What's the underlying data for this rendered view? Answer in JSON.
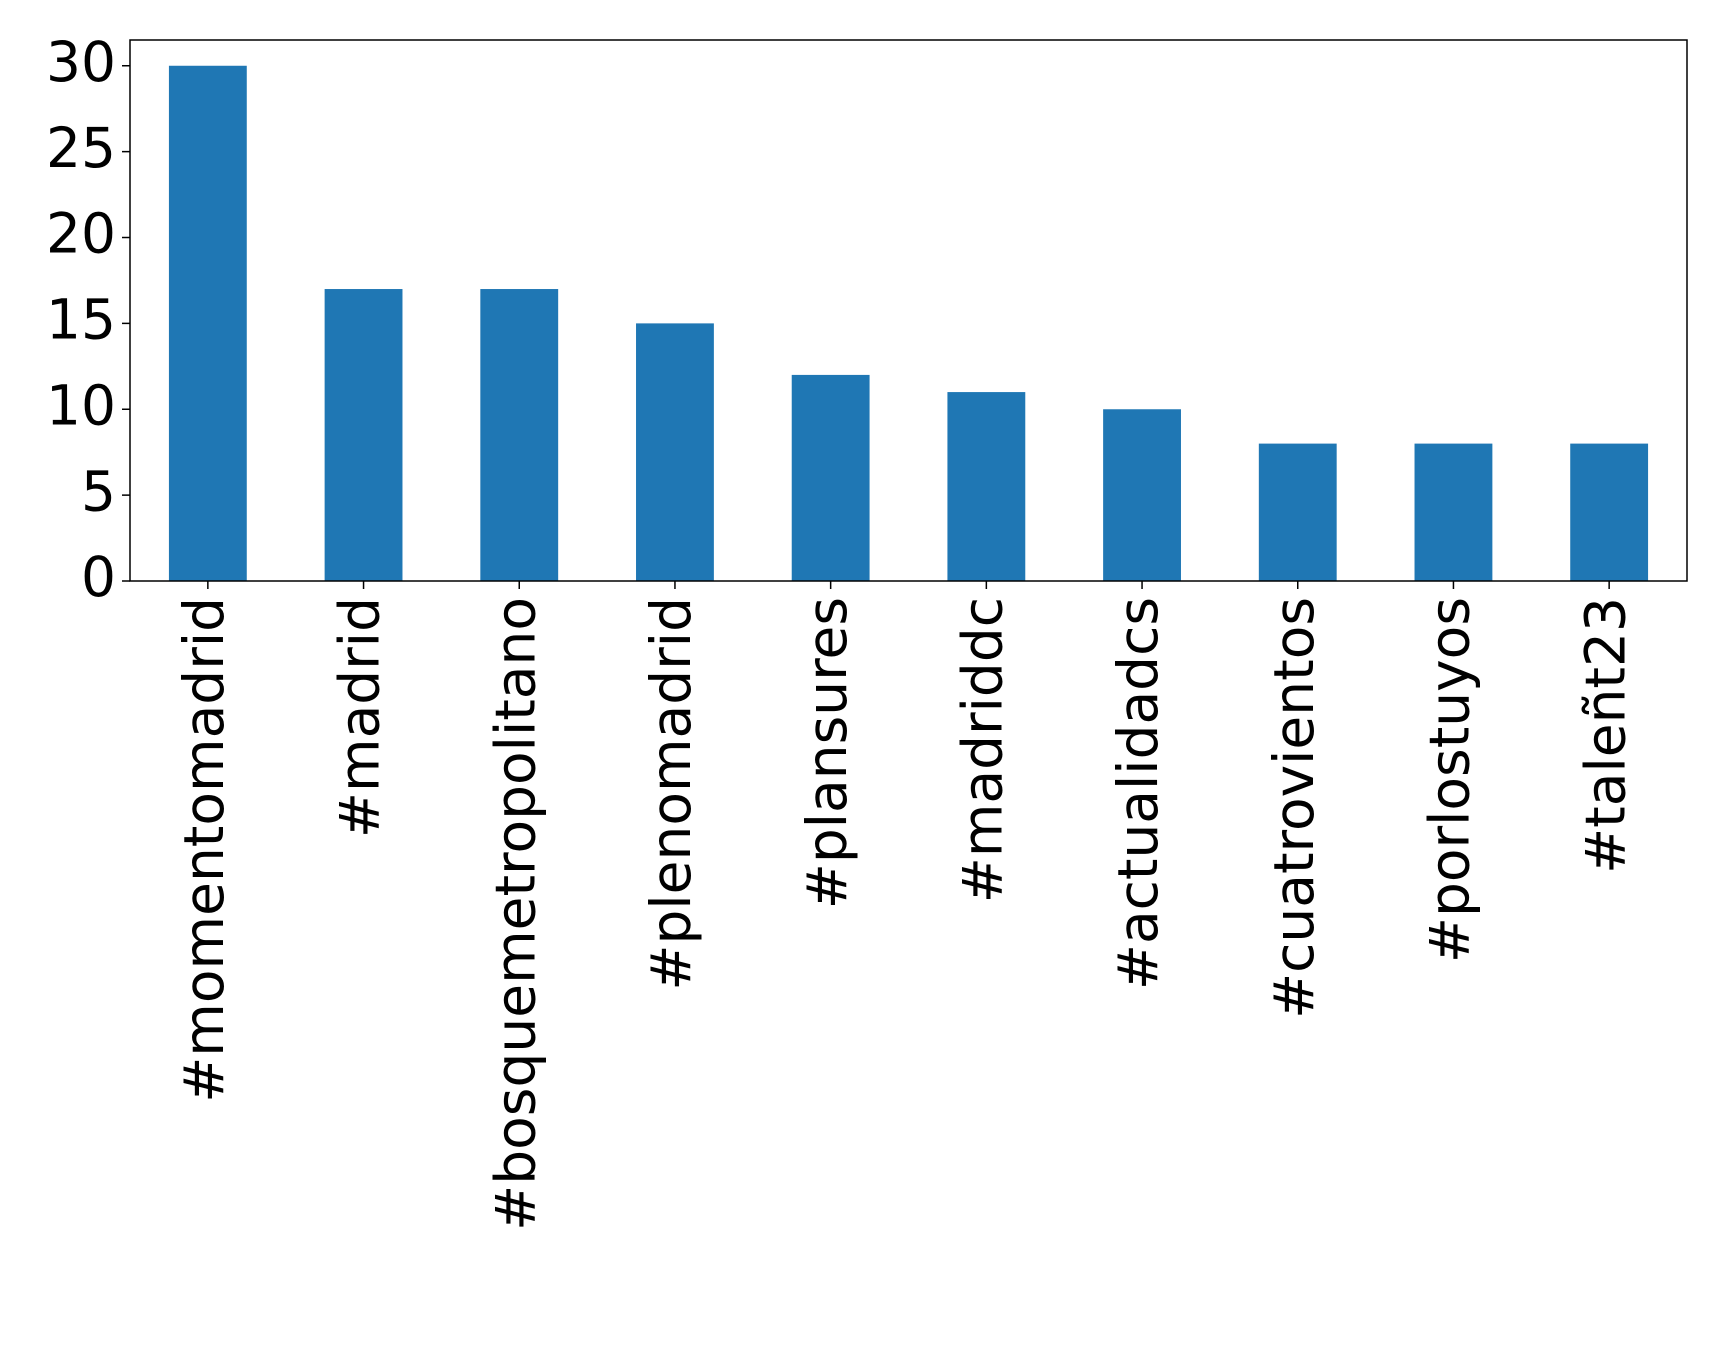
{
  "chart_data": {
    "type": "bar",
    "categories": [
      "#momentomadrid",
      "#madrid",
      "#bosquemetropolitano",
      "#plenomadrid",
      "#plansures",
      "#madriddc",
      "#actualidadcs",
      "#cuatrovientos",
      "#porlostuyos",
      "#taleñt23"
    ],
    "values": [
      30,
      17,
      17,
      15,
      12,
      11,
      10,
      8,
      8,
      8
    ],
    "color": "#1f77b4",
    "ylim": [
      0,
      31.5
    ],
    "yticks": [
      0,
      5,
      10,
      15,
      20,
      25,
      30
    ],
    "grid": false
  }
}
